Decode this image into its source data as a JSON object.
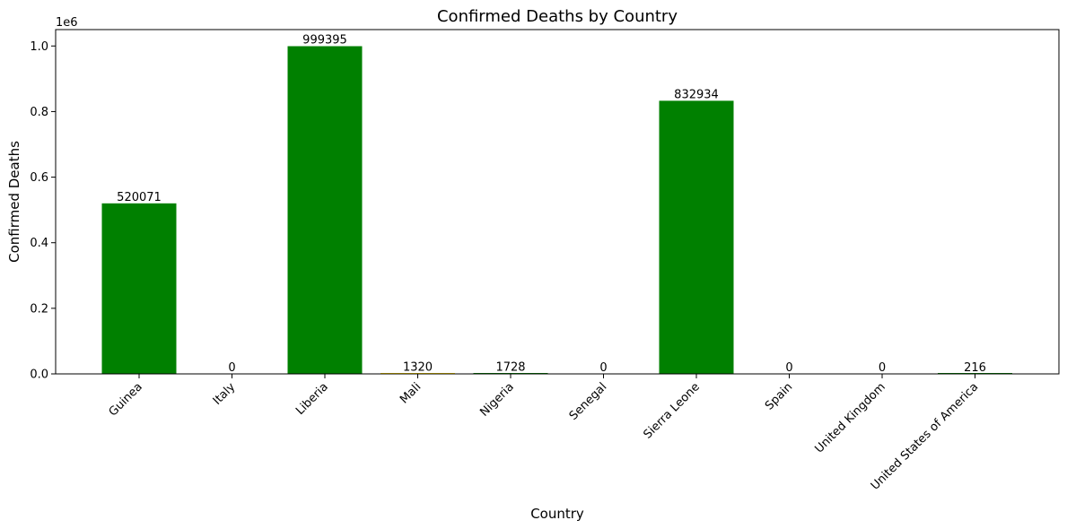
{
  "chart_data": {
    "type": "bar",
    "title": "Confirmed Deaths by Country",
    "xlabel": "Country",
    "ylabel": "Confirmed Deaths",
    "y_offset_label": "1e6",
    "ylim": [
      0,
      1050000
    ],
    "y_ticks": [
      0,
      200000,
      400000,
      600000,
      800000,
      1000000
    ],
    "y_tick_labels": [
      "0.0",
      "0.2",
      "0.4",
      "0.6",
      "0.8",
      "1.0"
    ],
    "categories": [
      "Guinea",
      "Italy",
      "Liberia",
      "Mali",
      "Nigeria",
      "Senegal",
      "Sierra Leone",
      "Spain",
      "United Kingdom",
      "United States of America"
    ],
    "values": [
      520071,
      0,
      999395,
      1320,
      1728,
      0,
      832934,
      0,
      0,
      216
    ],
    "value_labels": [
      "520071",
      "0",
      "999395",
      "1320",
      "1728",
      "0",
      "832934",
      "0",
      "0",
      "216"
    ],
    "bar_colors": [
      "#008000",
      "#008000",
      "#008000",
      "#FFD700",
      "#008000",
      "#008000",
      "#008000",
      "#008000",
      "#008000",
      "#008000"
    ],
    "grid": false,
    "legend": "none"
  }
}
